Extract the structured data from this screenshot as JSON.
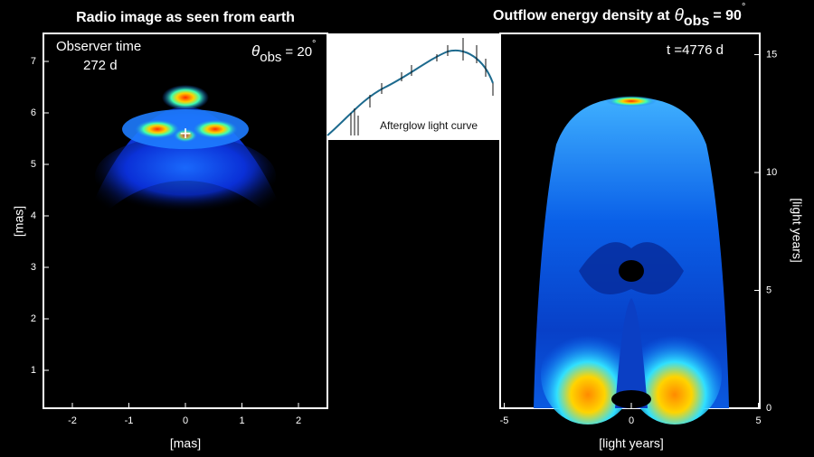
{
  "left_panel": {
    "title": "Radio image as seen from earth",
    "time_label": "Observer time",
    "time_value": "272 d",
    "angle_symbol": "θ",
    "angle_subscript": "obs",
    "angle_value": "= 20",
    "angle_degree": "°",
    "xticks": [
      -2,
      -1,
      0,
      1,
      2
    ],
    "yticks": [
      1,
      2,
      3,
      4,
      5,
      6,
      7
    ],
    "xlabel": "[mas]",
    "ylabel": "[mas]",
    "marker": "+"
  },
  "inset": {
    "label": "Afterglow light curve"
  },
  "right_panel": {
    "title": "Outflow energy density at",
    "angle_symbol": "θ",
    "angle_subscript": "obs",
    "angle_value": "= 90",
    "angle_degree": "°",
    "time_label": "t =4776 d",
    "xticks": [
      -5,
      0,
      5
    ],
    "yticks": [
      0,
      5,
      10,
      15
    ],
    "xlabel": "[light years]",
    "ylabel": "[light years]"
  }
}
